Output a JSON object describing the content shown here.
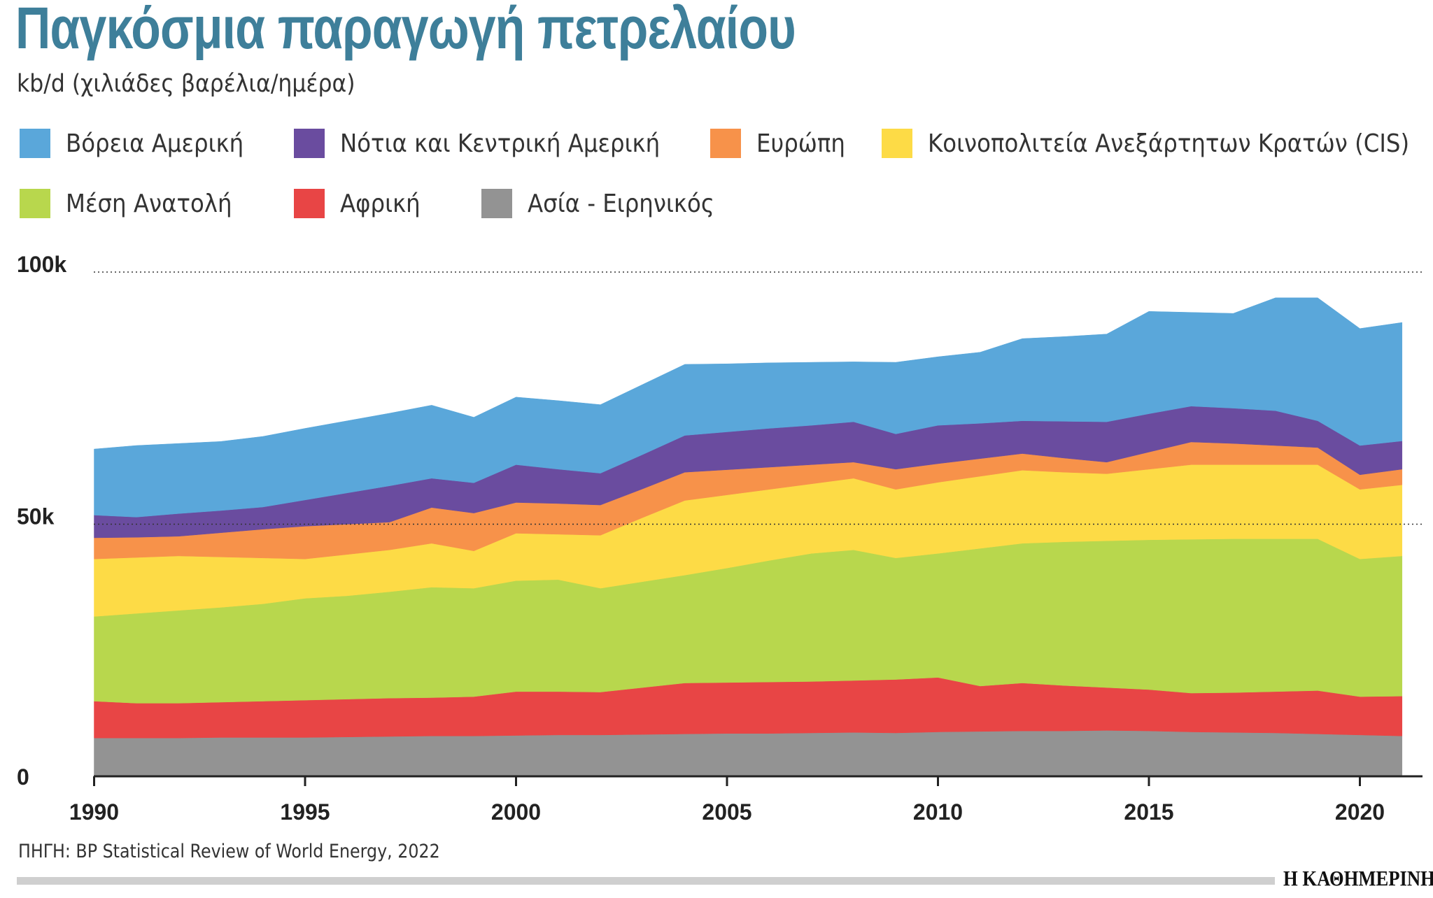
{
  "title": "Παγκόσμια παραγωγή πετρελαίου",
  "subtitle": "kb/d (χιλιάδες βαρέλια/ημέρα)",
  "source": "ΠΗΓΗ: BP Statistical Review of World Energy, 2022",
  "logo": "Η ΚΑΘΗΜΕΡΙΝΗ",
  "chart_data": {
    "type": "area",
    "stacked": true,
    "title": "Παγκόσμια παραγωγή πετρελαίου",
    "ylabel": "kb/d (χιλιάδες βαρέλια/ημέρα)",
    "xlabel": "",
    "ylim": [
      0,
      100000
    ],
    "yticks": [
      {
        "value": 0,
        "label": "0"
      },
      {
        "value": 50000,
        "label": "50k"
      },
      {
        "value": 100000,
        "label": "100k"
      }
    ],
    "xticks": [
      1990,
      1995,
      2000,
      2005,
      2010,
      2015,
      2020
    ],
    "grid": "dotted horizontal at 50k and 100k",
    "legend_placement": "top",
    "x": [
      1990,
      1991,
      1992,
      1993,
      1994,
      1995,
      1996,
      1997,
      1998,
      1999,
      2000,
      2001,
      2002,
      2003,
      2004,
      2005,
      2006,
      2007,
      2008,
      2009,
      2010,
      2011,
      2012,
      2013,
      2014,
      2015,
      2016,
      2017,
      2018,
      2019,
      2020,
      2021
    ],
    "series": [
      {
        "name": "Ασία - Ειρηνικός",
        "color": "#939393",
        "values": [
          7600,
          7600,
          7600,
          7700,
          7700,
          7700,
          7800,
          7900,
          8000,
          8000,
          8100,
          8200,
          8200,
          8300,
          8400,
          8500,
          8500,
          8600,
          8700,
          8600,
          8800,
          8900,
          9000,
          9000,
          9100,
          9000,
          8800,
          8700,
          8600,
          8400,
          8200,
          8000
        ]
      },
      {
        "name": "Αφρική",
        "color": "#e84545",
        "values": [
          7300,
          6900,
          6900,
          7000,
          7200,
          7400,
          7500,
          7600,
          7600,
          7800,
          8700,
          8600,
          8500,
          9300,
          10100,
          10100,
          10200,
          10200,
          10300,
          10600,
          10800,
          9000,
          9500,
          9000,
          8500,
          8200,
          7700,
          7900,
          8200,
          8600,
          7600,
          7900
        ]
      },
      {
        "name": "Μέση Ανατολή",
        "color": "#b8d74d",
        "values": [
          16800,
          17800,
          18400,
          18800,
          19300,
          20200,
          20500,
          21100,
          21900,
          21500,
          22000,
          22200,
          20600,
          21000,
          21400,
          22700,
          24100,
          25400,
          25900,
          24100,
          24600,
          27300,
          27700,
          28500,
          29100,
          29700,
          30500,
          30500,
          30300,
          30100,
          27300,
          27800
        ]
      },
      {
        "name": "Κοινοπολιτεία Ανεξάρτητων Κρατών (CIS)",
        "color": "#fddb46",
        "values": [
          11400,
          11100,
          10800,
          10000,
          9100,
          7800,
          8200,
          8300,
          8700,
          7400,
          9400,
          9000,
          10500,
          12700,
          14800,
          14500,
          14100,
          13800,
          14200,
          13600,
          14100,
          14300,
          14500,
          13800,
          13300,
          14000,
          14800,
          14700,
          14700,
          14700,
          13800,
          14100
        ]
      },
      {
        "name": "Ευρώπη",
        "color": "#f7924a",
        "values": [
          4200,
          4000,
          3900,
          4800,
          5700,
          6500,
          6000,
          5500,
          7100,
          7500,
          6100,
          6100,
          6000,
          5700,
          5600,
          5000,
          4400,
          3800,
          3200,
          4000,
          3700,
          3500,
          3300,
          2800,
          2300,
          3400,
          4500,
          4200,
          3800,
          3400,
          2900,
          3100
        ]
      },
      {
        "name": "Νότια και Κεντρική Αμερική",
        "color": "#6a4c9f",
        "values": [
          4500,
          4000,
          4500,
          4400,
          4400,
          5200,
          6200,
          7200,
          5800,
          6000,
          7500,
          6800,
          6300,
          6800,
          7300,
          7500,
          7700,
          7800,
          8000,
          7000,
          7600,
          7000,
          6500,
          7300,
          8000,
          7600,
          7100,
          7000,
          6900,
          5300,
          5800,
          5600
        ]
      },
      {
        "name": "Βόρεια Αμερική",
        "color": "#5aa7da",
        "values": [
          13100,
          14200,
          13900,
          13700,
          14000,
          14200,
          14300,
          14400,
          14500,
          13000,
          13400,
          13600,
          13600,
          13900,
          14100,
          13500,
          13000,
          12500,
          11900,
          14200,
          13600,
          14100,
          16300,
          16800,
          17400,
          20300,
          18600,
          18800,
          22400,
          24400,
          23200,
          23500
        ]
      }
    ]
  },
  "legend": [
    {
      "label": "Βόρεια Αμερική",
      "color": "#5aa7da"
    },
    {
      "label": "Νότια και Κεντρική Αμερική",
      "color": "#6a4c9f"
    },
    {
      "label": "Ευρώπη",
      "color": "#f7924a"
    },
    {
      "label": "Κοινοπολιτεία Ανεξάρτητων Κρατών (CIS)",
      "color": "#fddb46"
    },
    {
      "label": "Μέση Ανατολή",
      "color": "#b8d74d"
    },
    {
      "label": "Αφρική",
      "color": "#e84545"
    },
    {
      "label": "Ασία - Ειρηνικός",
      "color": "#939393"
    }
  ]
}
